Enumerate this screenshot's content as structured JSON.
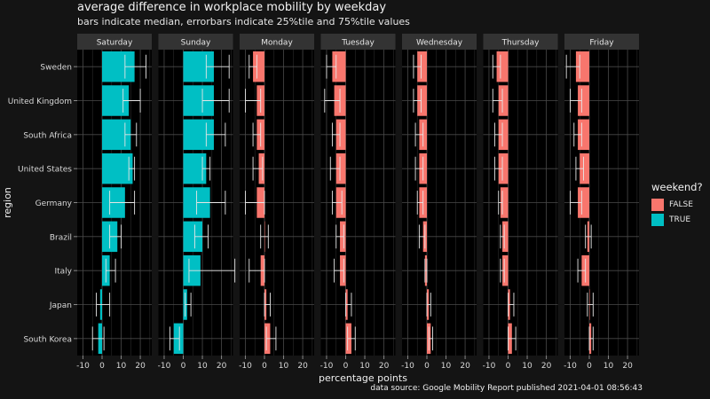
{
  "title": "average difference in workplace mobility by weekday",
  "subtitle": "bars indicate median, errorbars indicate 25%tile and 75%tile values",
  "caption": "data source: Google Mobility Report published 2021-04-01 08:56:43",
  "legend": {
    "title": "weekend?",
    "items": [
      {
        "label": "FALSE",
        "color": "#F8766D"
      },
      {
        "label": "TRUE",
        "color": "#00BFC4"
      }
    ]
  },
  "colors": {
    "background": "#141414",
    "panel": "#000000",
    "strip": "#333333",
    "grid": "#555555",
    "errorbar": "#e6e6e6"
  },
  "chart_data": {
    "type": "bar",
    "orientation": "horizontal",
    "xlabel": "percentage points",
    "ylabel": "region",
    "xlim": [
      -13,
      26
    ],
    "xticks": [
      -10,
      0,
      10,
      20
    ],
    "xtick_labels": [
      "-10",
      "0",
      "10",
      "20"
    ],
    "regions": [
      "Sweden",
      "United Kingdom",
      "South Africa",
      "United States",
      "Germany",
      "Brazil",
      "Italy",
      "Japan",
      "South Korea"
    ],
    "facets": [
      {
        "weekday": "Saturday",
        "weekend": true,
        "median": [
          17,
          14,
          15,
          16,
          12,
          8,
          4,
          -1,
          -2
        ],
        "q25": [
          12,
          11,
          12,
          14,
          4,
          4,
          2,
          -3,
          -5
        ],
        "q75": [
          23,
          20,
          18,
          17,
          17,
          10,
          7,
          4,
          1
        ]
      },
      {
        "weekday": "Sunday",
        "weekend": true,
        "median": [
          16,
          16,
          16,
          12,
          14,
          10,
          9,
          2,
          -5
        ],
        "q25": [
          12,
          10,
          12,
          10,
          7,
          6,
          3,
          1,
          -7
        ],
        "q75": [
          24,
          24,
          22,
          14,
          22,
          13,
          27,
          4,
          -2
        ]
      },
      {
        "weekday": "Monday",
        "weekend": false,
        "median": [
          -6,
          -4,
          -4,
          -3,
          -4,
          0,
          -2,
          1,
          3
        ],
        "q25": [
          -8,
          -10,
          -6,
          -6,
          -10,
          -2,
          -8,
          0,
          1
        ],
        "q75": [
          -4,
          -2,
          -2,
          -1,
          0,
          2,
          0,
          3,
          6
        ]
      },
      {
        "weekday": "Tuesday",
        "weekend": false,
        "median": [
          -7,
          -6,
          -5,
          -5,
          -5,
          -3,
          -3,
          1,
          3
        ],
        "q25": [
          -10,
          -11,
          -7,
          -8,
          -7,
          -5,
          -6,
          0,
          1
        ],
        "q75": [
          -5,
          -3,
          -3,
          -3,
          -2,
          -1,
          -1,
          3,
          5
        ]
      },
      {
        "weekday": "Wednesday",
        "weekend": false,
        "median": [
          -5,
          -5,
          -4,
          -4,
          -4,
          -2,
          -1,
          1,
          2
        ],
        "q25": [
          -7,
          -7,
          -6,
          -6,
          -5,
          -4,
          -1,
          0,
          1
        ],
        "q75": [
          -3,
          -3,
          -2,
          -2,
          -2,
          -1,
          0,
          2,
          3
        ]
      },
      {
        "weekday": "Thursday",
        "weekend": false,
        "median": [
          -6,
          -5,
          -5,
          -5,
          -4,
          -3,
          -3,
          1,
          2
        ],
        "q25": [
          -8,
          -8,
          -7,
          -7,
          -5,
          -4,
          -4,
          0,
          0
        ],
        "q75": [
          -4,
          -3,
          -3,
          -3,
          -3,
          -2,
          -2,
          3,
          4
        ]
      },
      {
        "weekday": "Friday",
        "weekend": false,
        "median": [
          -7,
          -6,
          -6,
          -5,
          -6,
          -1,
          -4,
          0,
          1
        ],
        "q25": [
          -12,
          -10,
          -8,
          -7,
          -10,
          -2,
          -6,
          -1,
          0
        ],
        "q75": [
          -5,
          -4,
          -4,
          -3,
          -4,
          1,
          -2,
          2,
          2
        ]
      }
    ]
  }
}
